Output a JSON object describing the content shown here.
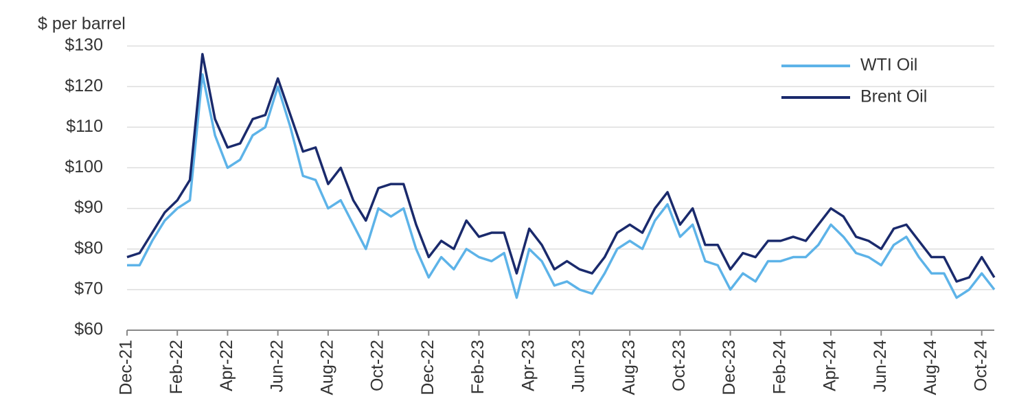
{
  "chart_data": {
    "type": "line",
    "y_label": "$ per barrel",
    "categories": [
      "Dec-21",
      null,
      null,
      null,
      "Feb-22",
      null,
      null,
      null,
      "Apr-22",
      null,
      null,
      null,
      "Jun-22",
      null,
      null,
      null,
      "Aug-22",
      null,
      null,
      null,
      "Oct-22",
      null,
      null,
      null,
      "Dec-22",
      null,
      null,
      null,
      "Feb-23",
      null,
      null,
      null,
      "Apr-23",
      null,
      null,
      null,
      "Jun-23",
      null,
      null,
      null,
      "Aug-23",
      null,
      null,
      null,
      "Oct-23",
      null,
      null,
      null,
      "Dec-23",
      null,
      null,
      null,
      "Feb-24",
      null,
      null,
      null,
      "Apr-24",
      null,
      null,
      null,
      "Jun-24",
      null,
      null,
      null,
      "Aug-24",
      null,
      null,
      null,
      "Oct-24",
      null
    ],
    "series": [
      {
        "name": "WTI Oil",
        "color": "#5db3e8",
        "values": [
          76,
          76,
          82,
          87,
          90,
          92,
          123,
          108,
          100,
          102,
          108,
          110,
          120,
          110,
          98,
          97,
          90,
          92,
          86,
          80,
          90,
          88,
          90,
          80,
          73,
          78,
          75,
          80,
          78,
          77,
          79,
          68,
          80,
          77,
          71,
          72,
          70,
          69,
          74,
          80,
          82,
          80,
          87,
          91,
          83,
          86,
          77,
          76,
          70,
          74,
          72,
          77,
          77,
          78,
          78,
          81,
          86,
          83,
          79,
          78,
          76,
          81,
          83,
          78,
          74,
          74,
          68,
          70,
          74,
          70
        ]
      },
      {
        "name": "Brent Oil",
        "color": "#1a2a6c",
        "values": [
          78,
          79,
          84,
          89,
          92,
          97,
          128,
          112,
          105,
          106,
          112,
          113,
          122,
          113,
          104,
          105,
          96,
          100,
          92,
          87,
          95,
          96,
          96,
          86,
          78,
          82,
          80,
          87,
          83,
          84,
          84,
          74,
          85,
          81,
          75,
          77,
          75,
          74,
          78,
          84,
          86,
          84,
          90,
          94,
          86,
          90,
          81,
          81,
          75,
          79,
          78,
          82,
          82,
          83,
          82,
          86,
          90,
          88,
          83,
          82,
          80,
          85,
          86,
          82,
          78,
          78,
          72,
          73,
          78,
          73
        ]
      }
    ],
    "ylim": [
      60,
      130
    ],
    "yticks": [
      {
        "value": 60,
        "label": "$60"
      },
      {
        "value": 70,
        "label": "$70"
      },
      {
        "value": 80,
        "label": "$80"
      },
      {
        "value": 90,
        "label": "$90"
      },
      {
        "value": 100,
        "label": "$100"
      },
      {
        "value": 110,
        "label": "$110"
      },
      {
        "value": 120,
        "label": "$120"
      },
      {
        "value": 130,
        "label": "$130"
      }
    ],
    "grid": true,
    "legend": "top-right"
  }
}
